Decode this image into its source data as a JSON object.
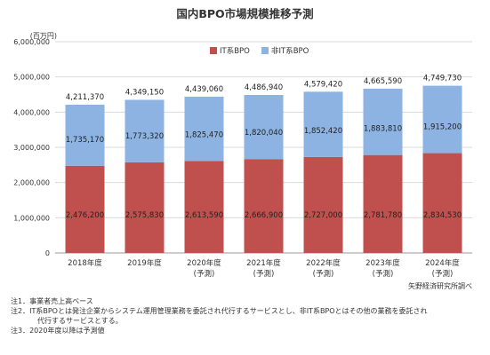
{
  "chart_data": {
    "type": "bar",
    "stacked": true,
    "title": "国内BPO市場規模推移予測",
    "unit_label": "(百万円)",
    "categories": [
      [
        "2018年度"
      ],
      [
        "2019年度"
      ],
      [
        "2020年度",
        "(予測)"
      ],
      [
        "2021年度",
        "(予測)"
      ],
      [
        "2022年度",
        "(予測)"
      ],
      [
        "2023年度",
        "(予測)"
      ],
      [
        "2024年度",
        "(予測)"
      ]
    ],
    "series": [
      {
        "name": "IT系BPO",
        "color": "#c0504d",
        "values": [
          2476200,
          2575830,
          2613590,
          2666900,
          2727000,
          2781780,
          2834530
        ],
        "labels": [
          "2,476,200",
          "2,575,830",
          "2,613,590",
          "2,666,900",
          "2,727,000",
          "2,781,780",
          "2,834,530"
        ]
      },
      {
        "name": "非IT系BPO",
        "color": "#8db3e2",
        "values": [
          1735170,
          1773320,
          1825470,
          1820040,
          1852420,
          1883810,
          1915200
        ],
        "labels": [
          "1,735,170",
          "1,773,320",
          "1,825,470",
          "1,820,040",
          "1,852,420",
          "1,883,810",
          "1,915,200"
        ]
      }
    ],
    "totals": [
      4211370,
      4349150,
      4439060,
      4486940,
      4579420,
      4665590,
      4749730
    ],
    "total_labels": [
      "4,211,370",
      "4,349,150",
      "4,439,060",
      "4,486,940",
      "4,579,420",
      "4,665,590",
      "4,749,730"
    ],
    "ylim": [
      0,
      6000000
    ],
    "yticks": [
      0,
      1000000,
      2000000,
      3000000,
      4000000,
      5000000,
      6000000
    ],
    "ytick_labels": [
      "0",
      "1,000,000",
      "2,000,000",
      "3,000,000",
      "4,000,000",
      "5,000,000",
      "6,000,000"
    ],
    "grid": true,
    "legend_position": "top-center"
  },
  "source": "矢野経済研究所調べ",
  "notes": [
    {
      "text": "注1．事業者売上高ベース",
      "indent": false
    },
    {
      "text": "注2．IT系BPOとは発注企業からシステム運用管理業務を委託され代行するサービスとし、非IT系BPOとはその他の業務を委託され",
      "indent": false
    },
    {
      "text": "代行するサービスとする。",
      "indent": true
    },
    {
      "text": "注3．2020年度以降は予測値",
      "indent": false
    }
  ]
}
